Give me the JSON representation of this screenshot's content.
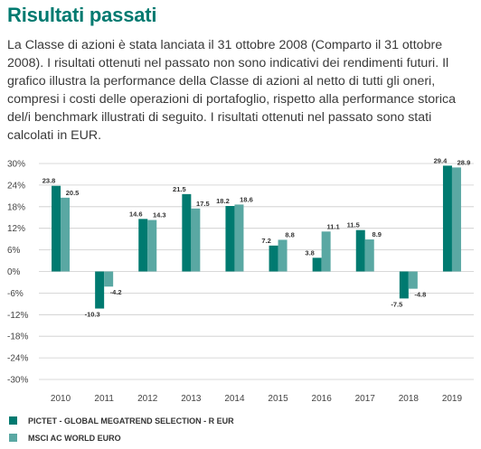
{
  "heading": "Risultati passati",
  "intro": "La Classe di azioni è stata lanciata il 31 ottobre 2008 (Comparto il 31 ottobre 2008). I risultati ottenuti nel passato non sono indicativi dei rendimenti futuri. Il grafico illustra la performance della Classe di azioni al netto di tutti gli oneri, compresi i costi delle operazioni di portafoglio, rispetto alla performance storica del/i benchmark illustrati di seguito. I risultati ottenuti nel passato sono stati calcolati in EUR.",
  "colors": {
    "series1": "#007a70",
    "series2": "#5aa8a3",
    "title": "#007a70"
  },
  "chart_data": {
    "type": "bar",
    "categories": [
      "2010",
      "2011",
      "2012",
      "2013",
      "2014",
      "2015",
      "2016",
      "2017",
      "2018",
      "2019"
    ],
    "series": [
      {
        "name": "PICTET - GLOBAL MEGATREND SELECTION - R EUR",
        "values": [
          23.8,
          -10.3,
          14.6,
          21.5,
          18.2,
          7.2,
          3.8,
          11.5,
          -7.5,
          29.4
        ]
      },
      {
        "name": "MSCI AC WORLD EURO",
        "values": [
          20.5,
          -4.2,
          14.3,
          17.5,
          18.6,
          8.8,
          11.1,
          8.9,
          -4.8,
          28.9
        ]
      }
    ],
    "yticks": [
      30,
      24,
      18,
      12,
      6,
      0,
      -6,
      -12,
      -18,
      -24,
      -30
    ],
    "ytick_labels": [
      "30%",
      "24%",
      "18%",
      "12%",
      "6%",
      "0%",
      "-6%",
      "-12%",
      "-18%",
      "-24%",
      "-30%"
    ],
    "ylim": [
      -30,
      30
    ],
    "grid": true,
    "legend_position": "bottom-left"
  }
}
